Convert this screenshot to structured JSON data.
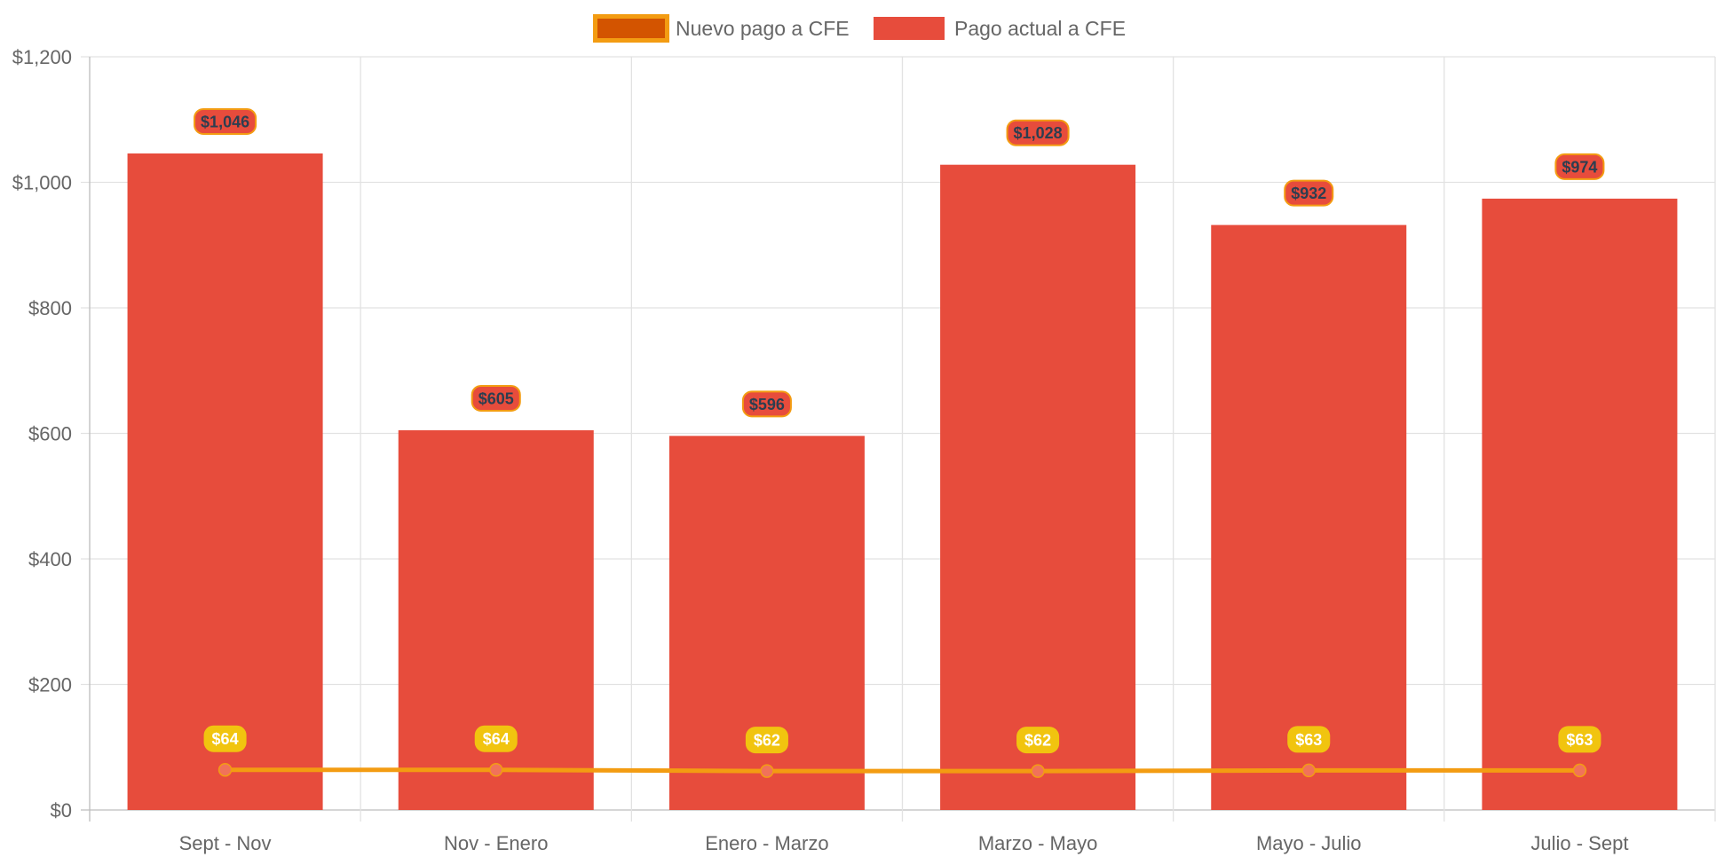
{
  "chart_data": {
    "type": "bar",
    "categories": [
      "Sept - Nov",
      "Nov - Enero",
      "Enero - Marzo",
      "Marzo - Mayo",
      "Mayo - Julio",
      "Julio - Sept"
    ],
    "series": [
      {
        "name": "Nuevo pago a CFE",
        "type": "line",
        "values": [
          64,
          64,
          62,
          62,
          63,
          63
        ],
        "labels": [
          "$64",
          "$64",
          "$62",
          "$62",
          "$63",
          "$63"
        ],
        "color": "#f39c12",
        "legend_fill": "#d35400",
        "point_color": "#f1725a",
        "label_bg": "#f1c40f",
        "label_text_color": "#ffffff"
      },
      {
        "name": "Pago actual a CFE",
        "type": "bar",
        "values": [
          1046,
          605,
          596,
          1028,
          932,
          974
        ],
        "labels": [
          "$1,046",
          "$605",
          "$596",
          "$1,028",
          "$932",
          "$974"
        ],
        "color": "#e74c3c",
        "label_bg": "#e74c3c",
        "label_border": "#f39c12",
        "label_text_color": "#2c3e50"
      }
    ],
    "y_ticks": [
      0,
      200,
      400,
      600,
      800,
      1000,
      1200
    ],
    "y_tick_labels": [
      "$0",
      "$200",
      "$400",
      "$600",
      "$800",
      "$1,000",
      "$1,200"
    ],
    "ylim": [
      0,
      1200
    ],
    "grid": true,
    "legend_position": "top-center",
    "title": "",
    "xlabel": "",
    "ylabel": ""
  }
}
